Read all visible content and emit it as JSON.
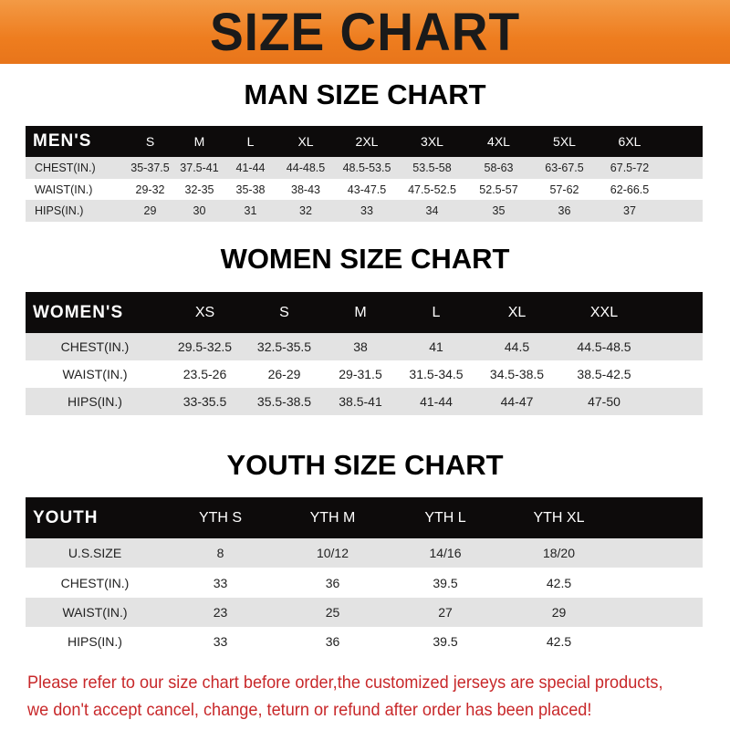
{
  "banner": "SIZE CHART",
  "men": {
    "title": "MAN SIZE CHART",
    "header": "MEN'S",
    "sizes": [
      "S",
      "M",
      "L",
      "XL",
      "2XL",
      "3XL",
      "4XL",
      "5XL",
      "6XL"
    ],
    "rows": [
      {
        "label": "CHEST(IN.)",
        "values": [
          "35-37.5",
          "37.5-41",
          "41-44",
          "44-48.5",
          "48.5-53.5",
          "53.5-58",
          "58-63",
          "63-67.5",
          "67.5-72"
        ]
      },
      {
        "label": "WAIST(IN.)",
        "values": [
          "29-32",
          "32-35",
          "35-38",
          "38-43",
          "43-47.5",
          "47.5-52.5",
          "52.5-57",
          "57-62",
          "62-66.5"
        ]
      },
      {
        "label": "HIPS(IN.)",
        "values": [
          "29",
          "30",
          "31",
          "32",
          "33",
          "34",
          "35",
          "36",
          "37"
        ]
      }
    ]
  },
  "women": {
    "title": "WOMEN SIZE CHART",
    "header": "WOMEN'S",
    "sizes": [
      "XS",
      "S",
      "M",
      "L",
      "XL",
      "XXL"
    ],
    "rows": [
      {
        "label": "CHEST(IN.)",
        "values": [
          "29.5-32.5",
          "32.5-35.5",
          "38",
          "41",
          "44.5",
          "44.5-48.5"
        ]
      },
      {
        "label": "WAIST(IN.)",
        "values": [
          "23.5-26",
          "26-29",
          "29-31.5",
          "31.5-34.5",
          "34.5-38.5",
          "38.5-42.5"
        ]
      },
      {
        "label": "HIPS(IN.)",
        "values": [
          "33-35.5",
          "35.5-38.5",
          "38.5-41",
          "41-44",
          "44-47",
          "47-50"
        ]
      }
    ]
  },
  "youth": {
    "title": "YOUTH SIZE CHART",
    "header": "YOUTH",
    "sizes": [
      "YTH S",
      "YTH M",
      "YTH L",
      "YTH XL"
    ],
    "rows": [
      {
        "label": "U.S.SIZE",
        "values": [
          "8",
          "10/12",
          "14/16",
          "18/20"
        ]
      },
      {
        "label": "CHEST(IN.)",
        "values": [
          "33",
          "36",
          "39.5",
          "42.5"
        ]
      },
      {
        "label": "WAIST(IN.)",
        "values": [
          "23",
          "25",
          "27",
          "29"
        ]
      },
      {
        "label": "HIPS(IN.)",
        "values": [
          "33",
          "36",
          "39.5",
          "42.5"
        ]
      }
    ]
  },
  "footer": [
    "Please refer to our size chart before order,the customized jerseys are special products,",
    "we don't accept cancel, change, teturn or refund after order has been placed!"
  ]
}
